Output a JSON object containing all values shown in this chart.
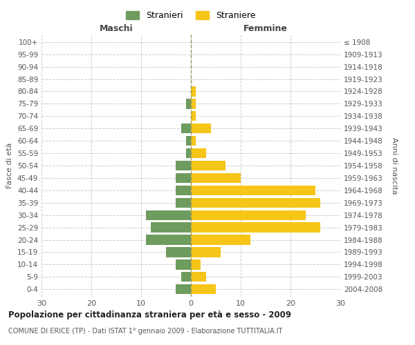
{
  "age_groups": [
    "0-4",
    "5-9",
    "10-14",
    "15-19",
    "20-24",
    "25-29",
    "30-34",
    "35-39",
    "40-44",
    "45-49",
    "50-54",
    "55-59",
    "60-64",
    "65-69",
    "70-74",
    "75-79",
    "80-84",
    "85-89",
    "90-94",
    "95-99",
    "100+"
  ],
  "birth_years": [
    "2004-2008",
    "1999-2003",
    "1994-1998",
    "1989-1993",
    "1984-1988",
    "1979-1983",
    "1974-1978",
    "1969-1973",
    "1964-1968",
    "1959-1963",
    "1954-1958",
    "1949-1953",
    "1944-1948",
    "1939-1943",
    "1934-1938",
    "1929-1933",
    "1924-1928",
    "1919-1923",
    "1914-1918",
    "1909-1913",
    "≤ 1908"
  ],
  "males": [
    3,
    2,
    3,
    5,
    9,
    8,
    9,
    3,
    3,
    3,
    3,
    1,
    1,
    2,
    0,
    1,
    0,
    0,
    0,
    0,
    0
  ],
  "females": [
    5,
    3,
    2,
    6,
    12,
    26,
    23,
    26,
    25,
    10,
    7,
    3,
    1,
    4,
    1,
    1,
    1,
    0,
    0,
    0,
    0
  ],
  "male_color": "#6e9b5e",
  "female_color": "#f5c518",
  "background_color": "#ffffff",
  "grid_color": "#cccccc",
  "title": "Popolazione per cittadinanza straniera per età e sesso - 2009",
  "subtitle": "COMUNE DI ERICE (TP) - Dati ISTAT 1° gennaio 2009 - Elaborazione TUTTITALIA.IT",
  "xlabel_left": "Maschi",
  "xlabel_right": "Femmine",
  "ylabel_left": "Fasce di età",
  "ylabel_right": "Anni di nascita",
  "legend_male": "Stranieri",
  "legend_female": "Straniere",
  "xlim": 30,
  "bar_height": 0.8
}
